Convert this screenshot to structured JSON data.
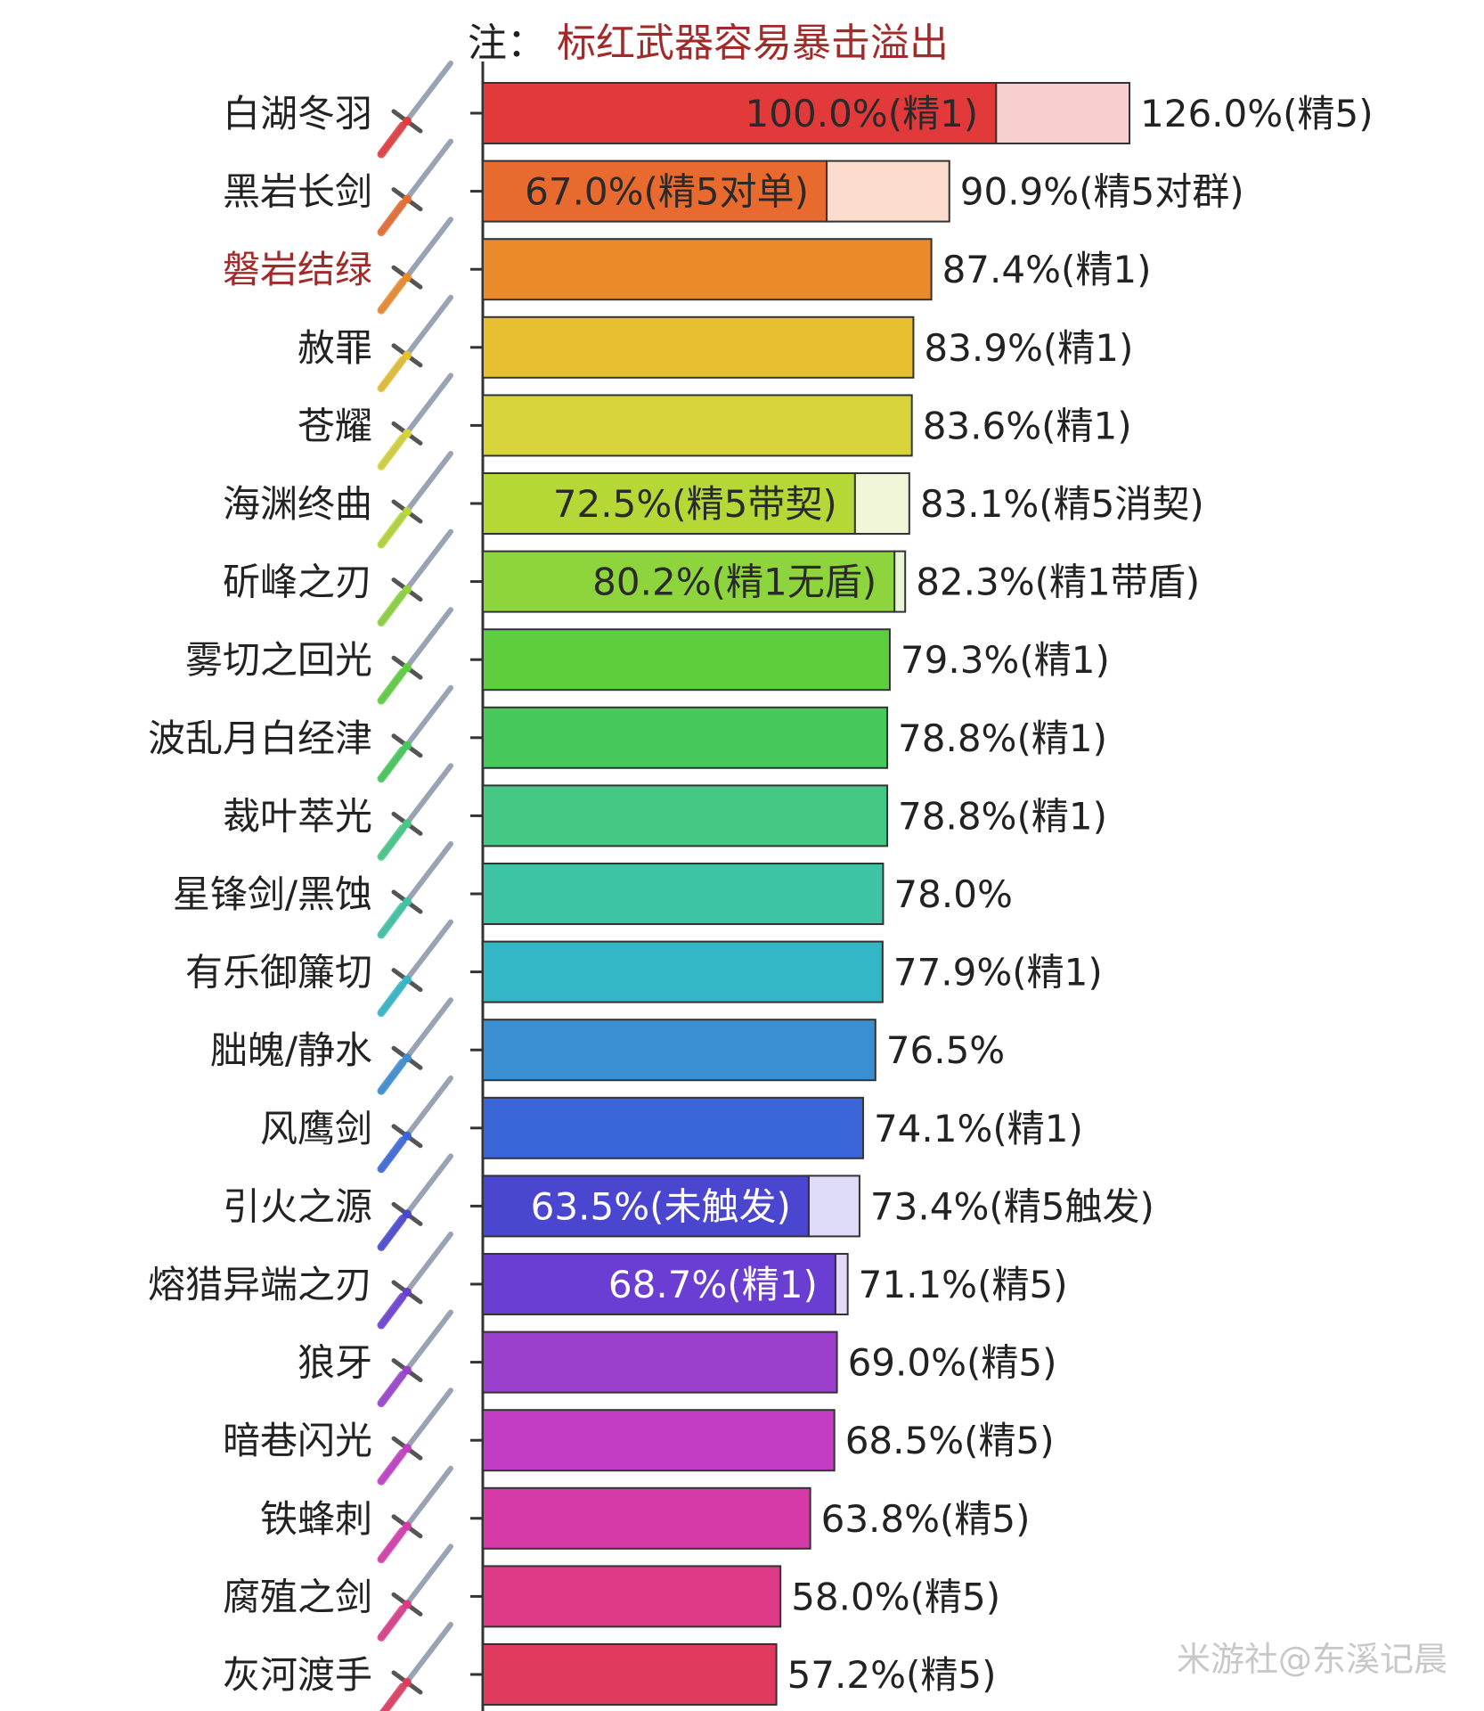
{
  "note": {
    "prefix": "注：",
    "text": "标红武器容易暴击溢出"
  },
  "watermark": "米游社@东溪记晨",
  "colors": {
    "highlight_label": "#a32a2a",
    "note_text": "#a32a2a",
    "axis": "#333333"
  },
  "chart_data": {
    "type": "bar",
    "orientation": "horizontal",
    "x_unit": "%",
    "xlim": [
      0,
      130
    ],
    "items": [
      {
        "name": "白湖冬羽",
        "highlight": false,
        "color": "#e23a3a",
        "ext_color": "#f8cfcf",
        "value": 100.0,
        "inner_label": "100.0%(精1)",
        "value_max": 126.0,
        "outer_label": "126.0%(精5)",
        "icon": "sword-icon"
      },
      {
        "name": "黑岩长剑",
        "highlight": false,
        "color": "#e86a2e",
        "ext_color": "#fbdccd",
        "value": 67.0,
        "inner_label": "67.0%(精5对单)",
        "value_max": 90.9,
        "outer_label": "90.9%(精5对群)",
        "icon": "sword-icon"
      },
      {
        "name": "磐岩结绿",
        "highlight": true,
        "color": "#ea8a2a",
        "value": 87.4,
        "outer_label": "87.4%(精1)",
        "icon": "sword-icon"
      },
      {
        "name": "赦罪",
        "highlight": false,
        "color": "#e6c030",
        "value": 83.9,
        "outer_label": "83.9%(精1)",
        "icon": "sword-icon"
      },
      {
        "name": "苍耀",
        "highlight": false,
        "color": "#d6d43a",
        "value": 83.6,
        "outer_label": "83.6%(精1)",
        "icon": "sword-icon"
      },
      {
        "name": "海渊终曲",
        "highlight": false,
        "color": "#b6d836",
        "ext_color": "#f1f6d8",
        "value": 72.5,
        "inner_label": "72.5%(精5带契)",
        "value_max": 83.1,
        "outer_label": "83.1%(精5消契)",
        "icon": "sword-icon"
      },
      {
        "name": "斫峰之刃",
        "highlight": false,
        "color": "#8ed43c",
        "ext_color": "#e6f6d6",
        "value": 80.2,
        "inner_label": "80.2%(精1无盾)",
        "value_max": 82.3,
        "outer_label": "82.3%(精1带盾)",
        "icon": "sword-icon"
      },
      {
        "name": "雾切之回光",
        "highlight": false,
        "color": "#5fce3e",
        "value": 79.3,
        "outer_label": "79.3%(精1)",
        "icon": "sword-icon"
      },
      {
        "name": "波乱月白经津",
        "highlight": false,
        "color": "#46c85a",
        "value": 78.8,
        "outer_label": "78.8%(精1)",
        "icon": "sword-icon"
      },
      {
        "name": "裁叶萃光",
        "highlight": false,
        "color": "#45c884",
        "value": 78.8,
        "outer_label": "78.8%(精1)",
        "icon": "sword-icon"
      },
      {
        "name": "星锋剑/黑蚀",
        "highlight": false,
        "color": "#3ec4a4",
        "value": 78.0,
        "outer_label": "78.0%",
        "icon": "sword-icon"
      },
      {
        "name": "有乐御簾切",
        "highlight": false,
        "color": "#33b6c6",
        "value": 77.9,
        "outer_label": "77.9%(精1)",
        "icon": "sword-icon"
      },
      {
        "name": "胐魄/静水",
        "highlight": false,
        "color": "#3a8ed2",
        "value": 76.5,
        "outer_label": "76.5%",
        "icon": "sword-icon"
      },
      {
        "name": "风鹰剑",
        "highlight": false,
        "color": "#3b66d8",
        "value": 74.1,
        "outer_label": "74.1%(精1)",
        "icon": "sword-icon"
      },
      {
        "name": "引火之源",
        "highlight": false,
        "color": "#4a46d0",
        "ext_color": "#dedcf8",
        "value": 63.5,
        "inner_label": "63.5%(未触发)",
        "value_max": 73.4,
        "outer_label": "73.4%(精5触发)",
        "icon": "sword-icon"
      },
      {
        "name": "熔猎异端之刃",
        "highlight": false,
        "color": "#6a3ed2",
        "ext_color": "#e4daf8",
        "value": 68.7,
        "inner_label": "68.7%(精1)",
        "value_max": 71.1,
        "outer_label": "71.1%(精5)",
        "icon": "sword-icon"
      },
      {
        "name": "狼牙",
        "highlight": false,
        "color": "#9a40cc",
        "value": 69.0,
        "outer_label": "69.0%(精5)",
        "icon": "sword-icon"
      },
      {
        "name": "暗巷闪光",
        "highlight": false,
        "color": "#c23cc4",
        "value": 68.5,
        "outer_label": "68.5%(精5)",
        "icon": "sword-icon"
      },
      {
        "name": "铁蜂刺",
        "highlight": false,
        "color": "#d63aa8",
        "value": 63.8,
        "outer_label": "63.8%(精5)",
        "icon": "sword-icon"
      },
      {
        "name": "腐殖之剑",
        "highlight": false,
        "color": "#dc3a86",
        "value": 58.0,
        "outer_label": "58.0%(精5)",
        "icon": "sword-icon"
      },
      {
        "name": "灰河渡手",
        "highlight": false,
        "color": "#e03a5e",
        "value": 57.2,
        "outer_label": "57.2%(精5)",
        "icon": "sword-icon"
      }
    ]
  }
}
